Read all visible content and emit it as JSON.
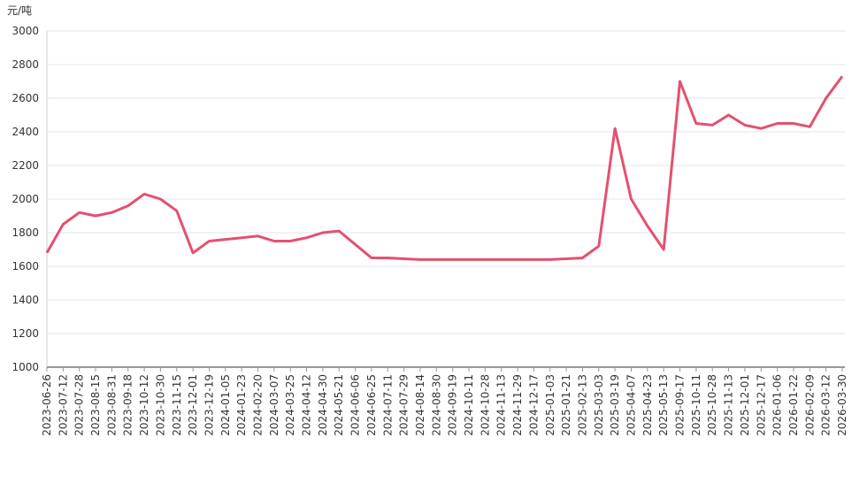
{
  "chart_data": {
    "type": "line",
    "y_label": "元/吨",
    "categories": [
      "2023-06-26",
      "2023-07-12",
      "2023-07-28",
      "2023-08-15",
      "2023-08-31",
      "2023-09-18",
      "2023-10-12",
      "2023-10-30",
      "2023-11-15",
      "2023-12-01",
      "2023-12-19",
      "2024-01-05",
      "2024-01-23",
      "2024-02-20",
      "2024-03-07",
      "2024-03-25",
      "2024-04-12",
      "2024-04-30",
      "2024-05-21",
      "2024-06-06",
      "2024-06-25",
      "2024-07-11",
      "2024-07-29",
      "2024-08-14",
      "2024-08-30",
      "2024-09-19",
      "2024-10-11",
      "2024-10-28",
      "2024-11-13",
      "2024-11-29",
      "2024-12-17",
      "2025-01-03",
      "2025-01-21",
      "2025-02-13",
      "2025-03-03",
      "2025-03-19",
      "2025-04-07",
      "2025-04-23",
      "2025-05-13",
      "2025-09-17",
      "2025-10-11",
      "2025-10-28",
      "2025-11-13",
      "2025-12-01",
      "2025-12-17",
      "2026-01-06",
      "2026-01-22",
      "2026-02-09",
      "2026-03-12",
      "2026-03-30"
    ],
    "series": [
      {
        "color": "#e5506f",
        "values": [
          1680,
          1850,
          1920,
          1900,
          1920,
          1960,
          2030,
          2000,
          1930,
          1680,
          1750,
          1760,
          1770,
          1780,
          1750,
          1750,
          1770,
          1800,
          1810,
          1730,
          1650,
          1650,
          1645,
          1640,
          1640,
          1640,
          1640,
          1640,
          1640,
          1640,
          1640,
          1640,
          1645,
          1650,
          1720,
          2420,
          2000,
          1840,
          1700,
          2700,
          2450,
          2440,
          2500,
          2440,
          2420,
          2450,
          2450,
          2430,
          2600,
          2730
        ]
      }
    ],
    "ylim": [
      1000,
      3000
    ],
    "yticks": [
      1000,
      1200,
      1400,
      1600,
      1800,
      2000,
      2200,
      2400,
      2600,
      2800,
      3000
    ],
    "grid": true
  }
}
